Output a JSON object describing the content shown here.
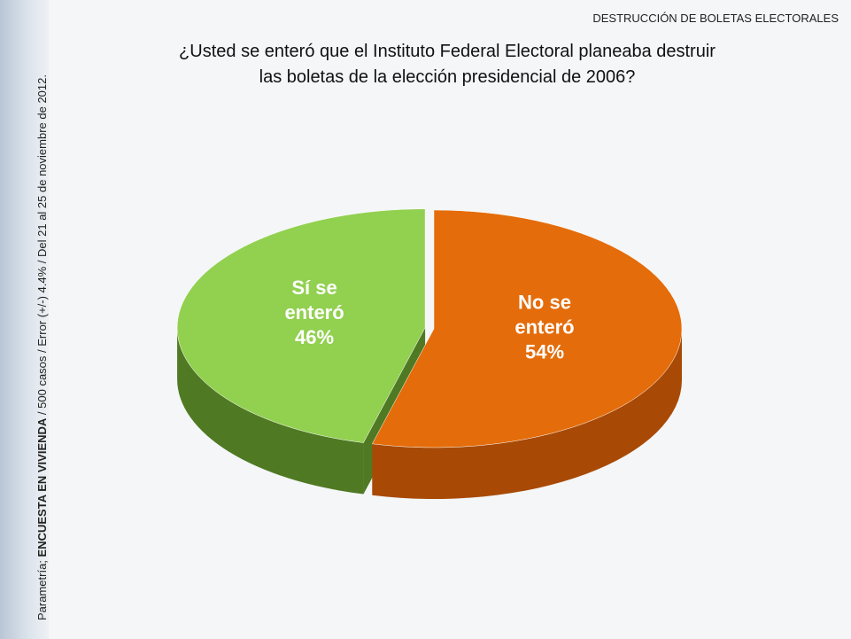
{
  "header": "DESTRUCCIÓN DE BOLETAS ELECTORALES",
  "source": {
    "prefix": "Parametría;",
    "survey": "ENCUESTA EN VIVIENDA",
    "details": "/ 500 casos / Error (+/-) 4.4% / Del 21 al 25 de noviembre de 2012."
  },
  "chart_data": {
    "type": "pie3d",
    "title": "¿Usted se enteró que el Instituto Federal Electoral planeaba destruir las boletas de la elección presidencial de 2006?",
    "categories": [
      "No se enteró",
      "Sí se enteró"
    ],
    "values": [
      54,
      46
    ],
    "value_labels": [
      "54%",
      "46%"
    ],
    "colors": [
      "#e46c0a",
      "#92d050"
    ],
    "side_colors": [
      "#a84a06",
      "#4f7a23"
    ]
  }
}
